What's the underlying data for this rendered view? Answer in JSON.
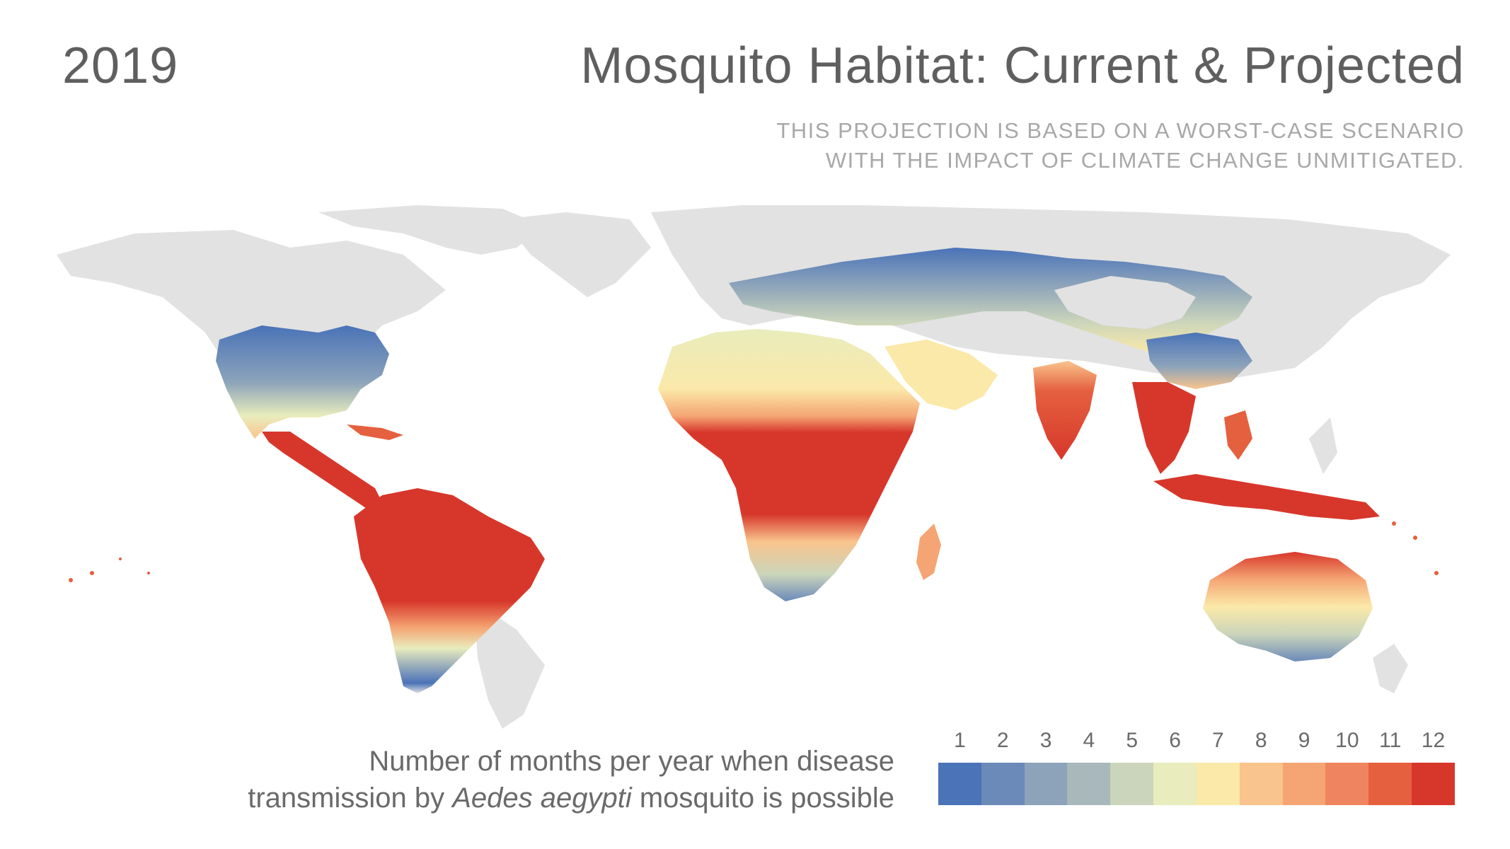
{
  "header": {
    "year": "2019",
    "title": "Mosquito Habitat: Current & Projected",
    "subtitle_line1": "THIS PROJECTION IS BASED ON A WORST-CASE SCENARIO",
    "subtitle_line2": "WITH THE IMPACT OF CLIMATE CHANGE UNMITIGATED."
  },
  "legend": {
    "title_line1": "Number of months per year when disease",
    "title_line2_pre": "transmission by ",
    "title_line2_italic": "Aedes aegypti",
    "title_line2_post": " mosquito is possible",
    "steps": [
      {
        "label": "1",
        "color": "#4a73b8"
      },
      {
        "label": "2",
        "color": "#6b8ab9"
      },
      {
        "label": "3",
        "color": "#8ca3ba"
      },
      {
        "label": "4",
        "color": "#a8b8bb"
      },
      {
        "label": "5",
        "color": "#cbd5bb"
      },
      {
        "label": "6",
        "color": "#e9ecbc"
      },
      {
        "label": "7",
        "color": "#fbe9a9"
      },
      {
        "label": "8",
        "color": "#f9c48d"
      },
      {
        "label": "9",
        "color": "#f5a573"
      },
      {
        "label": "10",
        "color": "#ee8560"
      },
      {
        "label": "11",
        "color": "#e5603f"
      },
      {
        "label": "12",
        "color": "#d7372b"
      }
    ]
  },
  "map": {
    "land_color": "#e2e2e2",
    "icon": "world-map"
  }
}
